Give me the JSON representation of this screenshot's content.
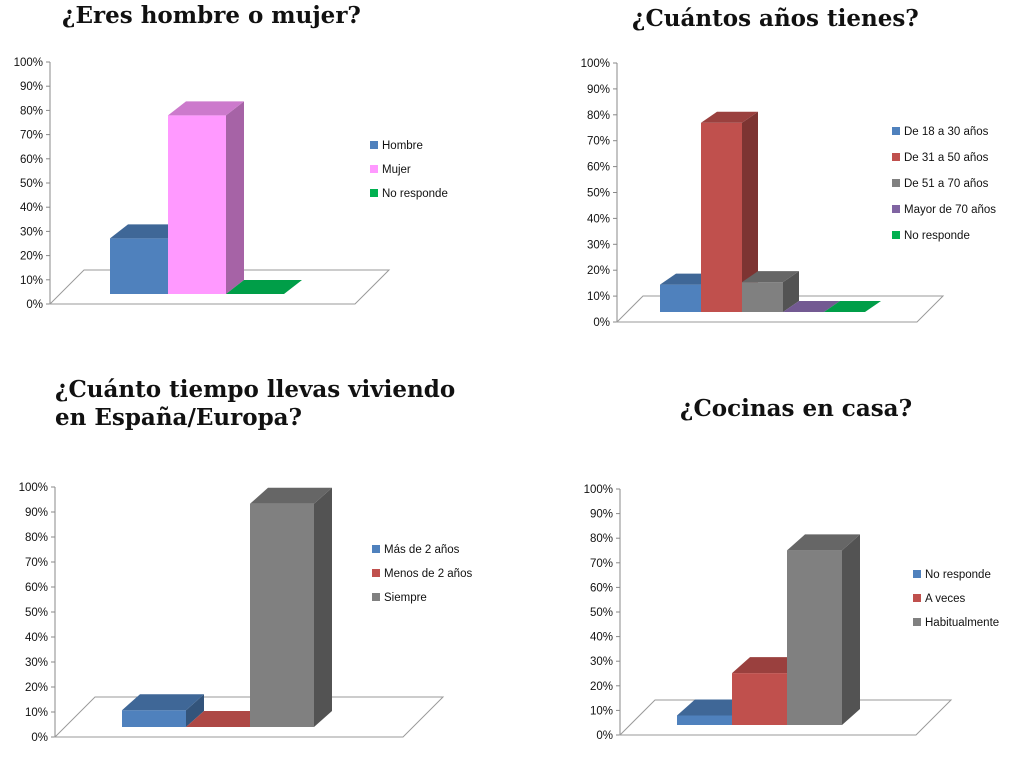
{
  "chart_data": [
    {
      "type": "bar",
      "title": "¿Eres hombre o mujer?",
      "categories": [
        "Hombre",
        "Mujer",
        "No responde"
      ],
      "values": [
        24,
        77,
        0
      ],
      "colors": [
        "#4f81bd",
        "#ff99ff",
        "#00b050"
      ],
      "ylim": [
        0,
        100
      ],
      "ticks": [
        "0%",
        "10%",
        "20%",
        "30%",
        "40%",
        "50%",
        "60%",
        "70%",
        "80%",
        "90%",
        "100%"
      ],
      "legend": "right",
      "grid": false
    },
    {
      "type": "bar",
      "title": "¿Cuántos años tienes?",
      "categories": [
        "De 18 a 30 años",
        "De 31 a 50 años",
        "De 51 a 70 años",
        "Mayor de 70 años",
        "No responde"
      ],
      "values": [
        11,
        76,
        12,
        0,
        0
      ],
      "colors": [
        "#4f81bd",
        "#c0504d",
        "#808080",
        "#8064a2",
        "#00b050"
      ],
      "ylim": [
        0,
        100
      ],
      "ticks": [
        "0%",
        "10%",
        "20%",
        "30%",
        "40%",
        "50%",
        "60%",
        "70%",
        "80%",
        "90%",
        "100%"
      ],
      "legend": "right",
      "grid": false
    },
    {
      "type": "bar",
      "title": "¿Cuánto tiempo llevas viviendo\nen España/Europa?",
      "categories": [
        "Más de 2 años",
        "Menos de 2 años",
        "Siempre"
      ],
      "values": [
        7,
        0,
        93
      ],
      "colors": [
        "#4f81bd",
        "#c0504d",
        "#808080"
      ],
      "ylim": [
        0,
        100
      ],
      "ticks": [
        "0%",
        "10%",
        "20%",
        "30%",
        "40%",
        "50%",
        "60%",
        "70%",
        "80%",
        "90%",
        "100%"
      ],
      "legend": "right",
      "grid": false
    },
    {
      "type": "bar",
      "title": "¿Cocinas en casa?",
      "categories": [
        "No responde",
        "A veces",
        "Habitualmente"
      ],
      "values": [
        4,
        22,
        74
      ],
      "colors": [
        "#4f81bd",
        "#c0504d",
        "#808080"
      ],
      "ylim": [
        0,
        100
      ],
      "ticks": [
        "0%",
        "10%",
        "20%",
        "30%",
        "40%",
        "50%",
        "60%",
        "70%",
        "80%",
        "90%",
        "100%"
      ],
      "legend": "right",
      "grid": false
    }
  ]
}
